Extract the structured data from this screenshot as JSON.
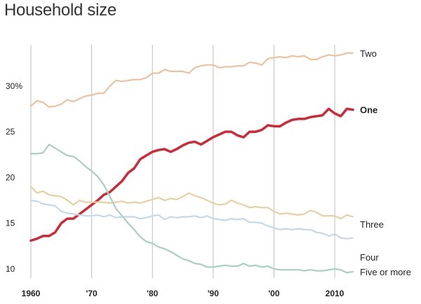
{
  "chart_data": {
    "type": "line",
    "title": "Household size",
    "xlabel": "",
    "ylabel": "",
    "xlim": [
      1960,
      2013
    ],
    "ylim": [
      9,
      34.5
    ],
    "x_ticks": [
      {
        "value": 1960,
        "label": "1960"
      },
      {
        "value": 1970,
        "label": "'70"
      },
      {
        "value": 1980,
        "label": "'80"
      },
      {
        "value": 1990,
        "label": "'90"
      },
      {
        "value": 2000,
        "label": "'00"
      },
      {
        "value": 2010,
        "label": "2010"
      }
    ],
    "y_ticks": [
      {
        "value": 10,
        "label": "10"
      },
      {
        "value": 15,
        "label": "15"
      },
      {
        "value": 20,
        "label": "20"
      },
      {
        "value": 25,
        "label": "25"
      },
      {
        "value": 30,
        "label": "30%"
      }
    ],
    "grid": {
      "vertical": true,
      "horizontal": false
    },
    "legend": "end-labels",
    "x": [
      1960,
      1961,
      1962,
      1963,
      1964,
      1965,
      1966,
      1967,
      1968,
      1969,
      1970,
      1971,
      1972,
      1973,
      1974,
      1975,
      1976,
      1977,
      1978,
      1979,
      1980,
      1981,
      1982,
      1983,
      1984,
      1985,
      1986,
      1987,
      1988,
      1989,
      1990,
      1991,
      1992,
      1993,
      1994,
      1995,
      1996,
      1997,
      1998,
      1999,
      2000,
      2001,
      2002,
      2003,
      2004,
      2005,
      2006,
      2007,
      2008,
      2009,
      2010,
      2011,
      2012,
      2013
    ],
    "series": [
      {
        "name": "Two",
        "color": "#ecc29e",
        "bold": false,
        "values": [
          27.8,
          28.4,
          28.2,
          27.7,
          27.8,
          28.0,
          28.5,
          28.3,
          28.6,
          28.9,
          29.0,
          29.2,
          29.2,
          30.0,
          30.6,
          30.5,
          30.6,
          30.7,
          30.7,
          30.9,
          31.4,
          31.4,
          31.8,
          31.6,
          31.6,
          31.6,
          31.4,
          32.0,
          32.2,
          32.3,
          32.3,
          32.0,
          32.1,
          32.1,
          32.2,
          32.2,
          32.6,
          32.5,
          32.3,
          33.0,
          33.1,
          33.2,
          33.1,
          33.3,
          33.2,
          33.3,
          32.9,
          32.9,
          33.2,
          33.4,
          33.3,
          33.4,
          33.6,
          33.6
        ]
      },
      {
        "name": "One",
        "color": "#cc2a36",
        "bold": true,
        "values": [
          13.1,
          13.3,
          13.6,
          13.6,
          14.0,
          15.0,
          15.5,
          15.5,
          16.0,
          16.5,
          17.0,
          17.5,
          18.1,
          18.4,
          19.0,
          19.6,
          20.5,
          21.0,
          22.0,
          22.4,
          22.8,
          23.0,
          23.1,
          22.8,
          23.1,
          23.5,
          23.8,
          23.9,
          23.6,
          24.0,
          24.4,
          24.7,
          25.0,
          25.0,
          24.6,
          24.4,
          25.0,
          25.0,
          25.2,
          25.7,
          25.6,
          25.6,
          26.0,
          26.3,
          26.4,
          26.4,
          26.6,
          26.7,
          26.8,
          27.5,
          27.0,
          26.7,
          27.5,
          27.4
        ]
      },
      {
        "name": "Three",
        "color": "#e6d0a2",
        "bold": false,
        "values": [
          19.0,
          18.3,
          18.5,
          18.1,
          18.0,
          17.9,
          17.5,
          17.0,
          17.5,
          17.3,
          17.3,
          17.3,
          17.3,
          17.2,
          17.3,
          17.4,
          17.2,
          17.3,
          17.2,
          17.4,
          17.6,
          17.8,
          17.5,
          17.7,
          17.6,
          17.9,
          18.3,
          18.0,
          17.8,
          17.5,
          17.2,
          17.0,
          17.1,
          17.5,
          17.2,
          17.0,
          16.7,
          16.8,
          16.7,
          16.7,
          16.3,
          16.0,
          16.1,
          16.0,
          15.9,
          16.0,
          16.4,
          16.2,
          15.8,
          15.8,
          15.8,
          15.5,
          15.9,
          15.7
        ]
      },
      {
        "name": "Four",
        "color": "#c3d9e8",
        "bold": false,
        "values": [
          17.5,
          17.4,
          17.1,
          17.0,
          16.9,
          16.3,
          16.1,
          16.0,
          15.9,
          15.8,
          15.8,
          15.9,
          15.7,
          15.9,
          15.6,
          15.7,
          15.7,
          15.7,
          15.5,
          15.6,
          15.8,
          15.9,
          15.4,
          15.7,
          15.6,
          15.7,
          15.7,
          15.8,
          15.6,
          15.8,
          15.5,
          15.4,
          15.3,
          15.5,
          15.4,
          15.5,
          15.1,
          15.1,
          15.0,
          14.7,
          14.5,
          14.3,
          14.4,
          14.3,
          14.4,
          14.3,
          14.3,
          14.0,
          13.9,
          13.6,
          13.8,
          13.4,
          13.3,
          13.4
        ]
      },
      {
        "name": "Five or more",
        "color": "#a9cfbf",
        "bold": false,
        "values": [
          22.6,
          22.6,
          22.7,
          23.6,
          23.2,
          22.8,
          22.4,
          22.3,
          21.8,
          21.2,
          20.7,
          20.1,
          19.2,
          17.9,
          16.6,
          15.8,
          15.0,
          14.3,
          13.5,
          13.0,
          12.8,
          12.4,
          12.2,
          11.9,
          11.5,
          11.1,
          10.9,
          10.6,
          10.5,
          10.2,
          10.2,
          10.3,
          10.4,
          10.3,
          10.3,
          10.6,
          10.3,
          10.4,
          10.2,
          10.3,
          10.0,
          9.9,
          9.9,
          9.9,
          9.9,
          9.8,
          9.9,
          9.8,
          9.8,
          9.9,
          10.0,
          9.9,
          9.6,
          9.7
        ]
      }
    ]
  }
}
